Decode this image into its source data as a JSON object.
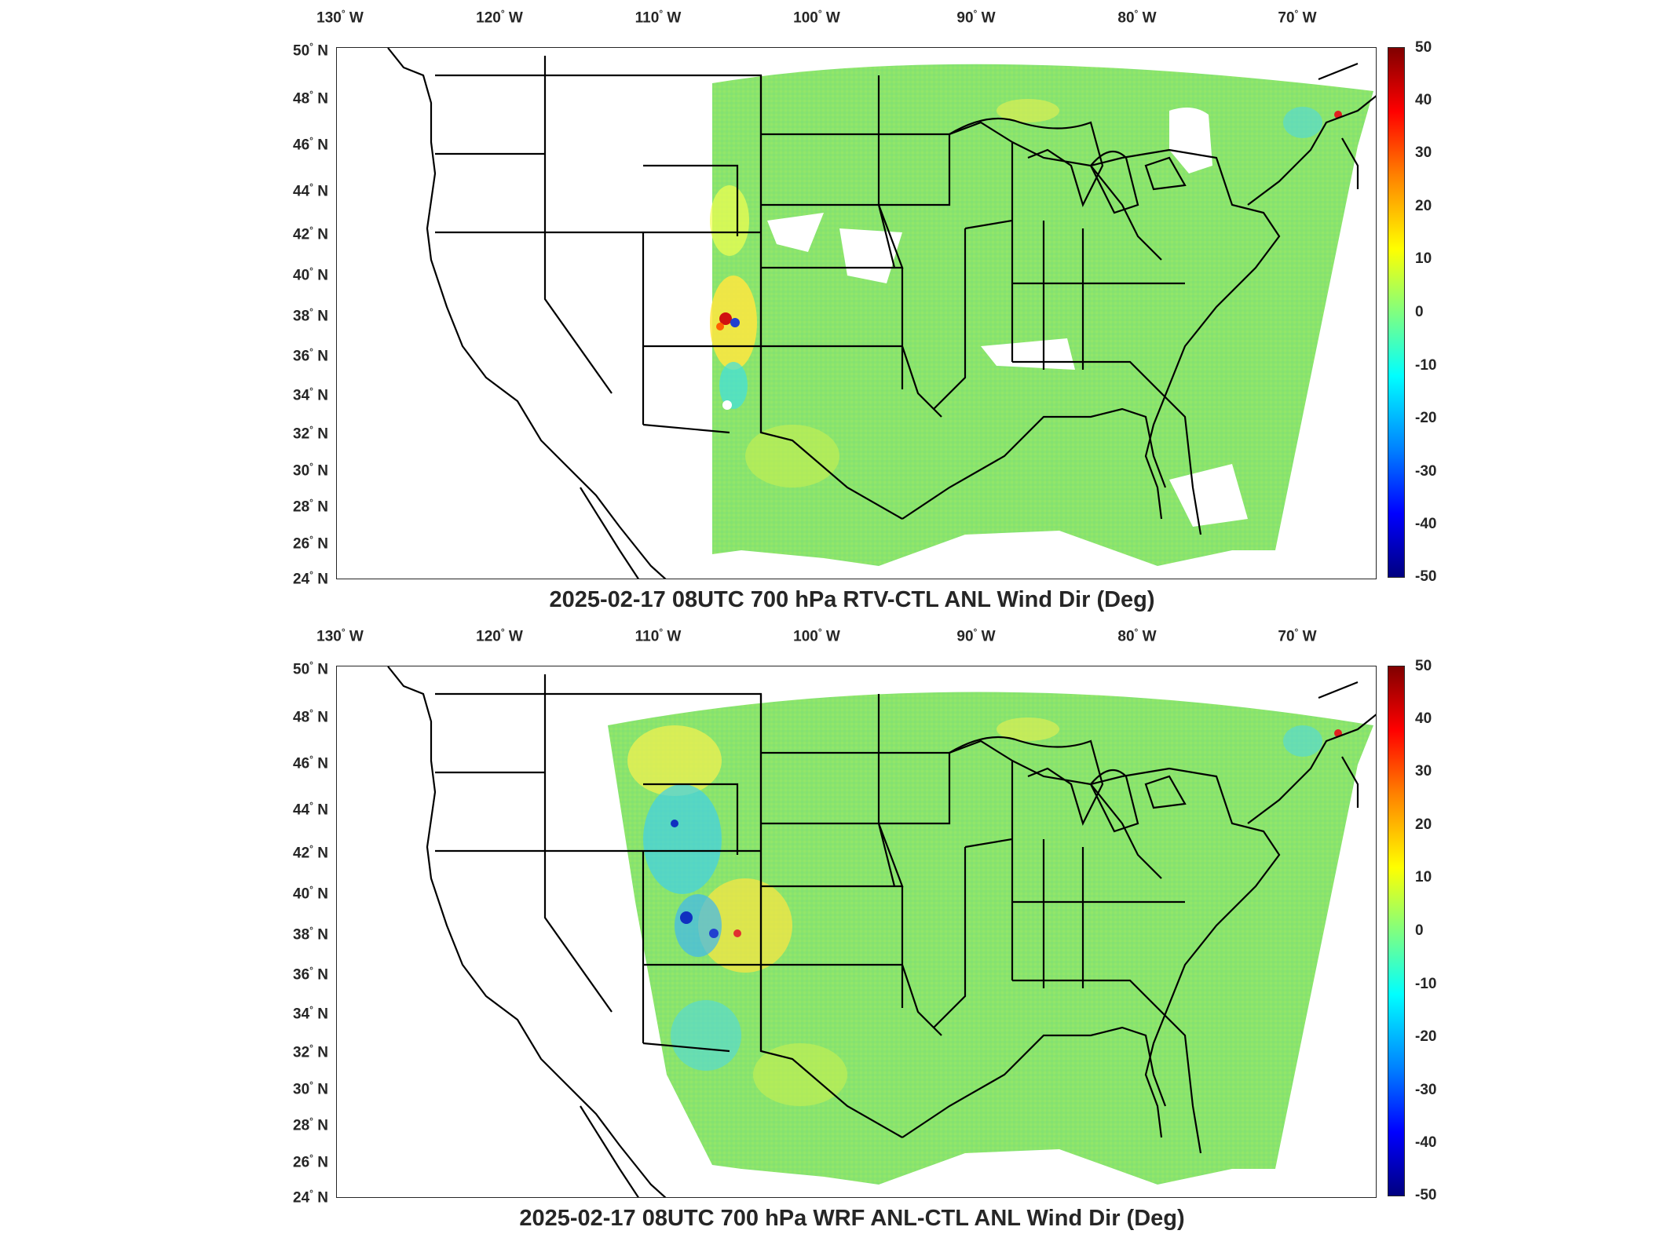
{
  "panels": [
    {
      "title": "2025-02-17 08UTC 700 hPa RTV-CTL ANL Wind Dir (Deg)",
      "lon_labels": [
        "130",
        "120",
        "110",
        "100",
        "90",
        "80",
        "70"
      ],
      "lon_suffix": "W",
      "lat_labels": [
        "50",
        "48",
        "46",
        "44",
        "42",
        "40",
        "38",
        "36",
        "34",
        "32",
        "30",
        "28",
        "26",
        "24"
      ],
      "lat_suffix": "N",
      "degree_symbol": "°",
      "colorbar_labels": [
        "50",
        "40",
        "30",
        "20",
        "10",
        "0",
        "-10",
        "-20",
        "-30",
        "-40",
        "-50"
      ]
    },
    {
      "title": "2025-02-17 08UTC 700 hPa WRF ANL-CTL ANL Wind Dir (Deg)",
      "lon_labels": [
        "130",
        "120",
        "110",
        "100",
        "90",
        "80",
        "70"
      ],
      "lon_suffix": "W",
      "lat_labels": [
        "50",
        "48",
        "46",
        "44",
        "42",
        "40",
        "38",
        "36",
        "34",
        "32",
        "30",
        "28",
        "26",
        "24"
      ],
      "lat_suffix": "N",
      "degree_symbol": "°",
      "colorbar_labels": [
        "50",
        "40",
        "30",
        "20",
        "10",
        "0",
        "-10",
        "-20",
        "-30",
        "-40",
        "-50"
      ]
    }
  ],
  "colors": {
    "field_base": "#8ae46c",
    "colormap": [
      "#800000",
      "#ff0000",
      "#ff8000",
      "#ffff00",
      "#80ff80",
      "#00ffff",
      "#0080ff",
      "#0000ff",
      "#000080"
    ]
  },
  "legend": {
    "placement": "right",
    "min": -50,
    "max": 50
  }
}
